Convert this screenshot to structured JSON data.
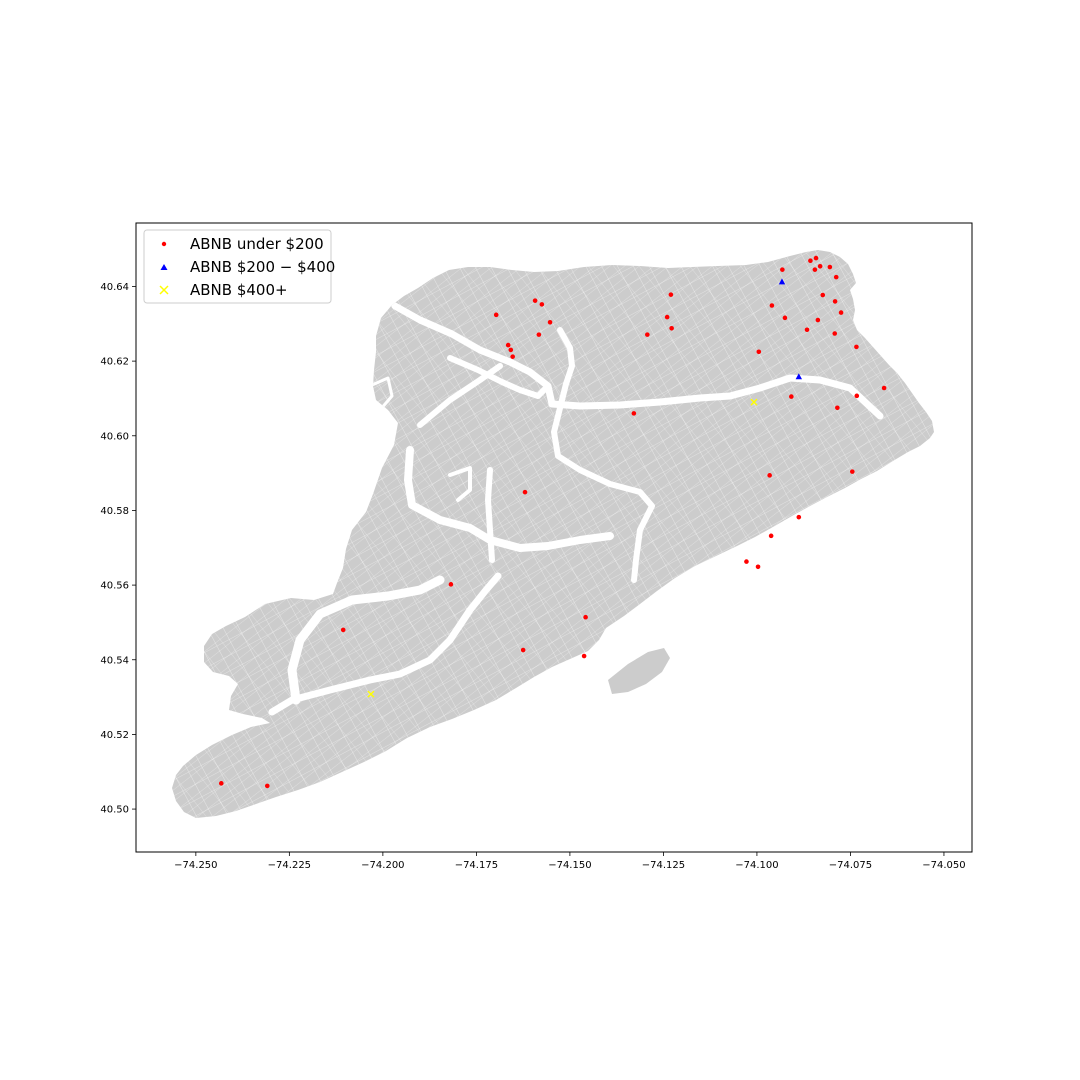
{
  "chart_data": {
    "type": "scatter",
    "basemap": "land-parcels",
    "colors": {
      "land": "#cccccc",
      "streets": "#ffffff",
      "frame": "#000000"
    },
    "xlim": [
      -74.266,
      -74.0425
    ],
    "ylim": [
      40.4885,
      40.657
    ],
    "x_ticks": [
      {
        "value": -74.25,
        "label": "−74.250"
      },
      {
        "value": -74.225,
        "label": "−74.225"
      },
      {
        "value": -74.2,
        "label": "−74.200"
      },
      {
        "value": -74.175,
        "label": "−74.175"
      },
      {
        "value": -74.15,
        "label": "−74.150"
      },
      {
        "value": -74.125,
        "label": "−74.125"
      },
      {
        "value": -74.1,
        "label": "−74.100"
      },
      {
        "value": -74.075,
        "label": "−74.075"
      },
      {
        "value": -74.05,
        "label": "−74.050"
      }
    ],
    "y_ticks": [
      {
        "value": 40.5,
        "label": "40.50"
      },
      {
        "value": 40.52,
        "label": "40.52"
      },
      {
        "value": 40.54,
        "label": "40.54"
      },
      {
        "value": 40.56,
        "label": "40.56"
      },
      {
        "value": 40.58,
        "label": "40.58"
      },
      {
        "value": 40.6,
        "label": "40.60"
      },
      {
        "value": 40.62,
        "label": "40.62"
      },
      {
        "value": 40.64,
        "label": "40.64"
      }
    ],
    "legend_position": "upper-left",
    "series": [
      {
        "name": "ABNB under $200",
        "marker": "dot",
        "color": "#ff0000",
        "points": [
          [
            -74.0842,
            40.6476
          ],
          [
            -74.0857,
            40.6469
          ],
          [
            -74.0831,
            40.6454
          ],
          [
            -74.0805,
            40.6452
          ],
          [
            -74.0845,
            40.6445
          ],
          [
            -74.0788,
            40.6425
          ],
          [
            -74.0932,
            40.6445
          ],
          [
            -74.0824,
            40.6377
          ],
          [
            -74.0791,
            40.636
          ],
          [
            -74.0775,
            40.633
          ],
          [
            -74.0837,
            40.631
          ],
          [
            -74.0866,
            40.6284
          ],
          [
            -74.0792,
            40.6274
          ],
          [
            -74.096,
            40.6349
          ],
          [
            -74.0925,
            40.6316
          ],
          [
            -74.0734,
            40.6238
          ],
          [
            -74.066,
            40.6128
          ],
          [
            -74.0733,
            40.6107
          ],
          [
            -74.0785,
            40.6075
          ],
          [
            -74.0908,
            40.6105
          ],
          [
            -74.0995,
            40.6225
          ],
          [
            -74.123,
            40.6378
          ],
          [
            -74.124,
            40.6318
          ],
          [
            -74.1228,
            40.6288
          ],
          [
            -74.1293,
            40.6271
          ],
          [
            -74.1329,
            40.606
          ],
          [
            -74.1593,
            40.6362
          ],
          [
            -74.1575,
            40.6352
          ],
          [
            -74.1553,
            40.6304
          ],
          [
            -74.1583,
            40.6271
          ],
          [
            -74.1697,
            40.6324
          ],
          [
            -74.1665,
            40.6243
          ],
          [
            -74.1658,
            40.623
          ],
          [
            -74.1653,
            40.6212
          ],
          [
            -74.162,
            40.5849
          ],
          [
            -74.0745,
            40.5904
          ],
          [
            -74.0966,
            40.5894
          ],
          [
            -74.0888,
            40.5782
          ],
          [
            -74.0962,
            40.5732
          ],
          [
            -74.1028,
            40.5663
          ],
          [
            -74.0997,
            40.5649
          ],
          [
            -74.1818,
            40.5602
          ],
          [
            -74.1458,
            40.5514
          ],
          [
            -74.2106,
            40.548
          ],
          [
            -74.1625,
            40.5426
          ],
          [
            -74.1462,
            40.541
          ],
          [
            -74.2432,
            40.5069
          ],
          [
            -74.2309,
            40.5062
          ]
        ]
      },
      {
        "name": "ABNB $200-$400",
        "marker": "triangle",
        "color": "#0000ff",
        "points": [
          [
            -74.0933,
            40.6412
          ],
          [
            -74.0888,
            40.6158
          ]
        ]
      },
      {
        "name": "ABNB $400+",
        "marker": "x",
        "color": "#ffff00",
        "points": [
          [
            -74.1008,
            40.609
          ],
          [
            -74.2032,
            40.5308
          ]
        ]
      }
    ]
  },
  "legend": {
    "items": [
      {
        "label": "ABNB under $200"
      },
      {
        "label": "ABNB $200 − $400"
      },
      {
        "label": "ABNB $400+"
      }
    ]
  }
}
